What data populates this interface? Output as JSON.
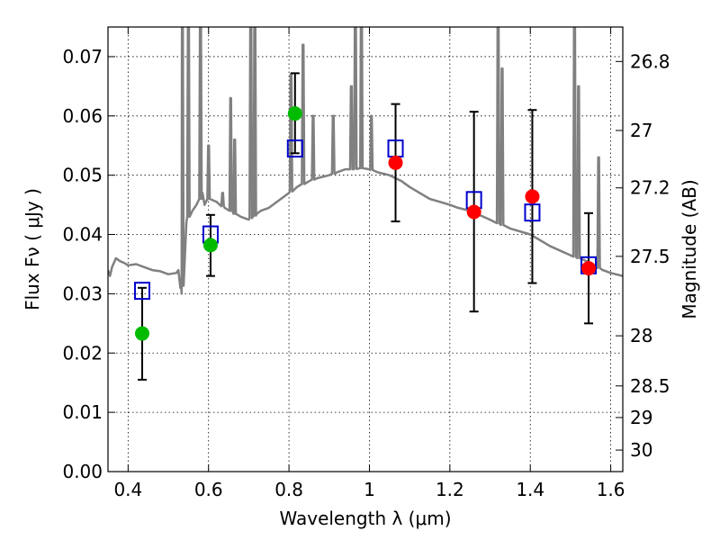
{
  "chart_data": {
    "type": "scatter",
    "xlabel": "Wavelength  λ (μm)",
    "ylabel": "Flux  Fν  ( μJy )",
    "ylabel_right": "Magnitude (AB)",
    "xlim": [
      0.35,
      1.63
    ],
    "ylim": [
      0.0,
      0.075
    ],
    "grid": true,
    "x_ticks": [
      0.4,
      0.6,
      0.8,
      1.0,
      1.2,
      1.4,
      1.6
    ],
    "x_tick_labels": [
      "0.4",
      "0.6",
      "0.8",
      "1",
      "1.2",
      "1.4",
      "1.6"
    ],
    "y_ticks": [
      0.0,
      0.01,
      0.02,
      0.03,
      0.04,
      0.05,
      0.06,
      0.07
    ],
    "y_tick_labels": [
      "0.00",
      "0.01",
      "0.02",
      "0.03",
      "0.04",
      "0.05",
      "0.06",
      "0.07"
    ],
    "right_ticks": [
      {
        "mag": 26.8,
        "label": "26.8"
      },
      {
        "mag": 27.0,
        "label": "27"
      },
      {
        "mag": 27.2,
        "label": "27.2"
      },
      {
        "mag": 27.5,
        "label": "27.5"
      },
      {
        "mag": 28.0,
        "label": "28"
      },
      {
        "mag": 28.5,
        "label": "28.5"
      },
      {
        "mag": 29.0,
        "label": "29"
      },
      {
        "mag": 30.0,
        "label": "30"
      }
    ],
    "colors": {
      "model": "#808080",
      "green": "#00bb00",
      "red": "#ff0000",
      "square": "#0000cc",
      "errorbar": "#000000"
    },
    "model_spectrum": {
      "x": [
        0.35,
        0.355,
        0.36,
        0.37,
        0.38,
        0.39,
        0.4,
        0.42,
        0.44,
        0.46,
        0.48,
        0.5,
        0.52,
        0.525,
        0.53,
        0.533,
        0.536,
        0.545,
        0.55,
        0.56,
        0.57,
        0.58,
        0.585,
        0.59,
        0.6,
        0.62,
        0.64,
        0.655,
        0.66,
        0.665,
        0.68,
        0.7,
        0.71,
        0.715,
        0.72,
        0.73,
        0.75,
        0.77,
        0.8,
        0.82,
        0.85,
        0.87,
        0.9,
        0.92,
        0.94,
        0.96,
        0.98,
        1.0,
        1.02,
        1.05,
        1.08,
        1.1,
        1.15,
        1.2,
        1.22,
        1.25,
        1.3,
        1.35,
        1.4,
        1.45,
        1.5,
        1.54,
        1.55,
        1.58,
        1.6,
        1.63
      ],
      "y": [
        0.034,
        0.033,
        0.0345,
        0.036,
        0.0355,
        0.0352,
        0.0348,
        0.035,
        0.0345,
        0.034,
        0.0338,
        0.0333,
        0.0335,
        0.034,
        0.031,
        0.03,
        0.032,
        0.042,
        0.043,
        0.044,
        0.045,
        0.046,
        0.047,
        0.045,
        0.046,
        0.0455,
        0.0445,
        0.044,
        0.044,
        0.0435,
        0.043,
        0.0425,
        0.043,
        0.0432,
        0.0435,
        0.044,
        0.0445,
        0.0455,
        0.047,
        0.048,
        0.049,
        0.0495,
        0.05,
        0.0505,
        0.051,
        0.051,
        0.0512,
        0.051,
        0.0505,
        0.05,
        0.049,
        0.048,
        0.046,
        0.045,
        0.0445,
        0.044,
        0.0425,
        0.041,
        0.04,
        0.038,
        0.0365,
        0.0355,
        0.035,
        0.034,
        0.0335,
        0.033
      ]
    },
    "emission_lines": [
      {
        "x": 0.535,
        "peak": 0.08
      },
      {
        "x": 0.55,
        "peak": 0.08
      },
      {
        "x": 0.58,
        "peak": 0.08
      },
      {
        "x": 0.6,
        "peak": 0.055
      },
      {
        "x": 0.635,
        "peak": 0.047
      },
      {
        "x": 0.655,
        "peak": 0.063
      },
      {
        "x": 0.665,
        "peak": 0.056
      },
      {
        "x": 0.705,
        "peak": 0.08
      },
      {
        "x": 0.715,
        "peak": 0.08
      },
      {
        "x": 0.805,
        "peak": 0.067
      },
      {
        "x": 0.835,
        "peak": 0.072
      },
      {
        "x": 0.86,
        "peak": 0.06
      },
      {
        "x": 0.91,
        "peak": 0.06
      },
      {
        "x": 0.955,
        "peak": 0.065
      },
      {
        "x": 0.965,
        "peak": 0.08
      },
      {
        "x": 0.98,
        "peak": 0.08
      },
      {
        "x": 1.005,
        "peak": 0.06
      },
      {
        "x": 1.32,
        "peak": 0.08
      },
      {
        "x": 1.33,
        "peak": 0.068
      },
      {
        "x": 1.51,
        "peak": 0.08
      },
      {
        "x": 1.52,
        "peak": 0.065
      },
      {
        "x": 1.57,
        "peak": 0.053
      }
    ],
    "green_points": [
      {
        "x": 0.435,
        "y": 0.0233,
        "err_low": 0.0155,
        "err_high": 0.031
      },
      {
        "x": 0.605,
        "y": 0.0382,
        "err_low": 0.033,
        "err_high": 0.0433
      },
      {
        "x": 0.815,
        "y": 0.0604,
        "err_low": 0.0537,
        "err_high": 0.0672
      }
    ],
    "red_points": [
      {
        "x": 1.065,
        "y": 0.0521,
        "err_low": 0.0422,
        "err_high": 0.062
      },
      {
        "x": 1.26,
        "y": 0.0438,
        "err_low": 0.027,
        "err_high": 0.0607
      },
      {
        "x": 1.405,
        "y": 0.0464,
        "err_low": 0.0318,
        "err_high": 0.061
      },
      {
        "x": 1.545,
        "y": 0.0343,
        "err_low": 0.025,
        "err_high": 0.0436
      }
    ],
    "model_squares": [
      {
        "x": 0.435,
        "y": 0.0305
      },
      {
        "x": 0.605,
        "y": 0.04
      },
      {
        "x": 0.815,
        "y": 0.0545
      },
      {
        "x": 1.065,
        "y": 0.0545
      },
      {
        "x": 1.26,
        "y": 0.0458
      },
      {
        "x": 1.405,
        "y": 0.0437
      },
      {
        "x": 1.545,
        "y": 0.0348
      }
    ]
  }
}
